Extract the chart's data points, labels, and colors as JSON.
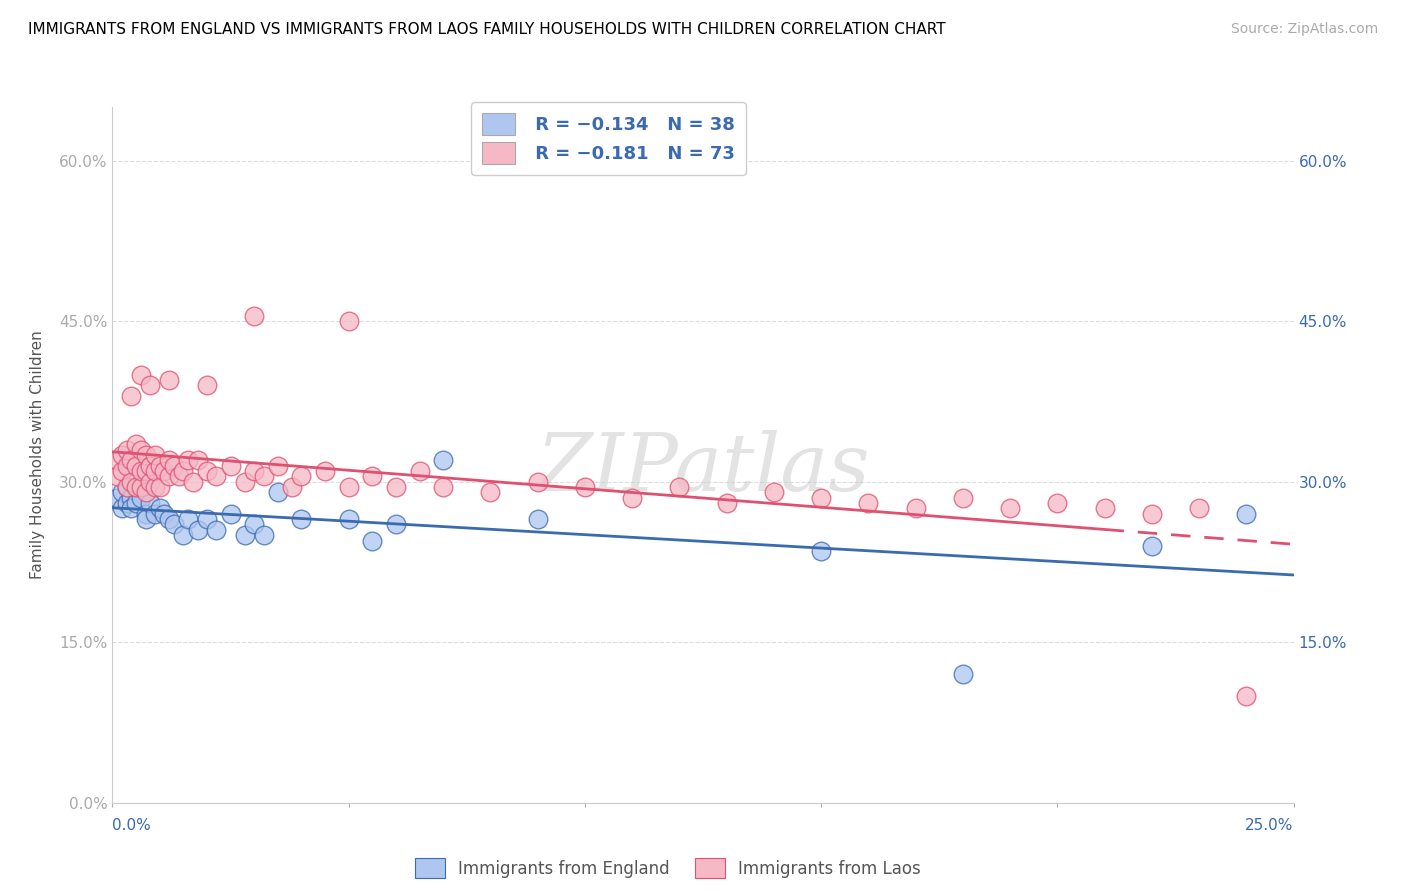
{
  "title": "IMMIGRANTS FROM ENGLAND VS IMMIGRANTS FROM LAOS FAMILY HOUSEHOLDS WITH CHILDREN CORRELATION CHART",
  "source": "Source: ZipAtlas.com",
  "ylabel": "Family Households with Children",
  "watermark": "ZIPatlas",
  "legend_england": {
    "R": -0.134,
    "N": 38,
    "color": "#aec6f0",
    "line_color": "#3a6ab0"
  },
  "legend_laos": {
    "R": -0.181,
    "N": 73,
    "color": "#f5b8c4",
    "line_color": "#e05070"
  },
  "xlim": [
    0.0,
    0.25
  ],
  "ylim": [
    0.0,
    0.65
  ],
  "yticks": [
    0.0,
    0.15,
    0.3,
    0.45,
    0.6
  ],
  "xticks": [
    0.0,
    0.05,
    0.1,
    0.15,
    0.2,
    0.25
  ],
  "england_x": [
    0.001,
    0.002,
    0.002,
    0.003,
    0.003,
    0.004,
    0.004,
    0.005,
    0.005,
    0.006,
    0.007,
    0.007,
    0.008,
    0.009,
    0.01,
    0.011,
    0.012,
    0.013,
    0.015,
    0.016,
    0.018,
    0.02,
    0.022,
    0.025,
    0.028,
    0.03,
    0.032,
    0.035,
    0.04,
    0.05,
    0.055,
    0.06,
    0.07,
    0.09,
    0.15,
    0.18,
    0.22,
    0.24
  ],
  "england_y": [
    0.285,
    0.275,
    0.29,
    0.28,
    0.295,
    0.285,
    0.275,
    0.28,
    0.295,
    0.285,
    0.27,
    0.265,
    0.28,
    0.27,
    0.275,
    0.27,
    0.265,
    0.26,
    0.25,
    0.265,
    0.255,
    0.265,
    0.255,
    0.27,
    0.25,
    0.26,
    0.25,
    0.29,
    0.265,
    0.265,
    0.245,
    0.26,
    0.32,
    0.265,
    0.235,
    0.12,
    0.24,
    0.27
  ],
  "laos_x": [
    0.001,
    0.001,
    0.002,
    0.002,
    0.003,
    0.003,
    0.003,
    0.004,
    0.004,
    0.005,
    0.005,
    0.005,
    0.006,
    0.006,
    0.006,
    0.007,
    0.007,
    0.007,
    0.008,
    0.008,
    0.009,
    0.009,
    0.009,
    0.01,
    0.01,
    0.011,
    0.012,
    0.012,
    0.013,
    0.014,
    0.015,
    0.016,
    0.017,
    0.018,
    0.02,
    0.022,
    0.025,
    0.028,
    0.03,
    0.032,
    0.035,
    0.038,
    0.04,
    0.045,
    0.05,
    0.055,
    0.06,
    0.065,
    0.07,
    0.08,
    0.09,
    0.1,
    0.11,
    0.12,
    0.13,
    0.14,
    0.15,
    0.16,
    0.17,
    0.18,
    0.19,
    0.2,
    0.21,
    0.22,
    0.23,
    0.24,
    0.004,
    0.006,
    0.008,
    0.012,
    0.02,
    0.03,
    0.05
  ],
  "laos_y": [
    0.305,
    0.32,
    0.31,
    0.325,
    0.295,
    0.315,
    0.33,
    0.3,
    0.32,
    0.295,
    0.315,
    0.335,
    0.295,
    0.31,
    0.33,
    0.29,
    0.31,
    0.325,
    0.3,
    0.315,
    0.295,
    0.31,
    0.325,
    0.295,
    0.315,
    0.31,
    0.305,
    0.32,
    0.315,
    0.305,
    0.31,
    0.32,
    0.3,
    0.32,
    0.31,
    0.305,
    0.315,
    0.3,
    0.31,
    0.305,
    0.315,
    0.295,
    0.305,
    0.31,
    0.295,
    0.305,
    0.295,
    0.31,
    0.295,
    0.29,
    0.3,
    0.295,
    0.285,
    0.295,
    0.28,
    0.29,
    0.285,
    0.28,
    0.275,
    0.285,
    0.275,
    0.28,
    0.275,
    0.27,
    0.275,
    0.1,
    0.38,
    0.4,
    0.39,
    0.395,
    0.39,
    0.455,
    0.45
  ],
  "england_line_solid_end": 0.25,
  "laos_line_solid_end": 0.21,
  "laos_line_dash_start": 0.21,
  "laos_line_dash_end": 0.25
}
